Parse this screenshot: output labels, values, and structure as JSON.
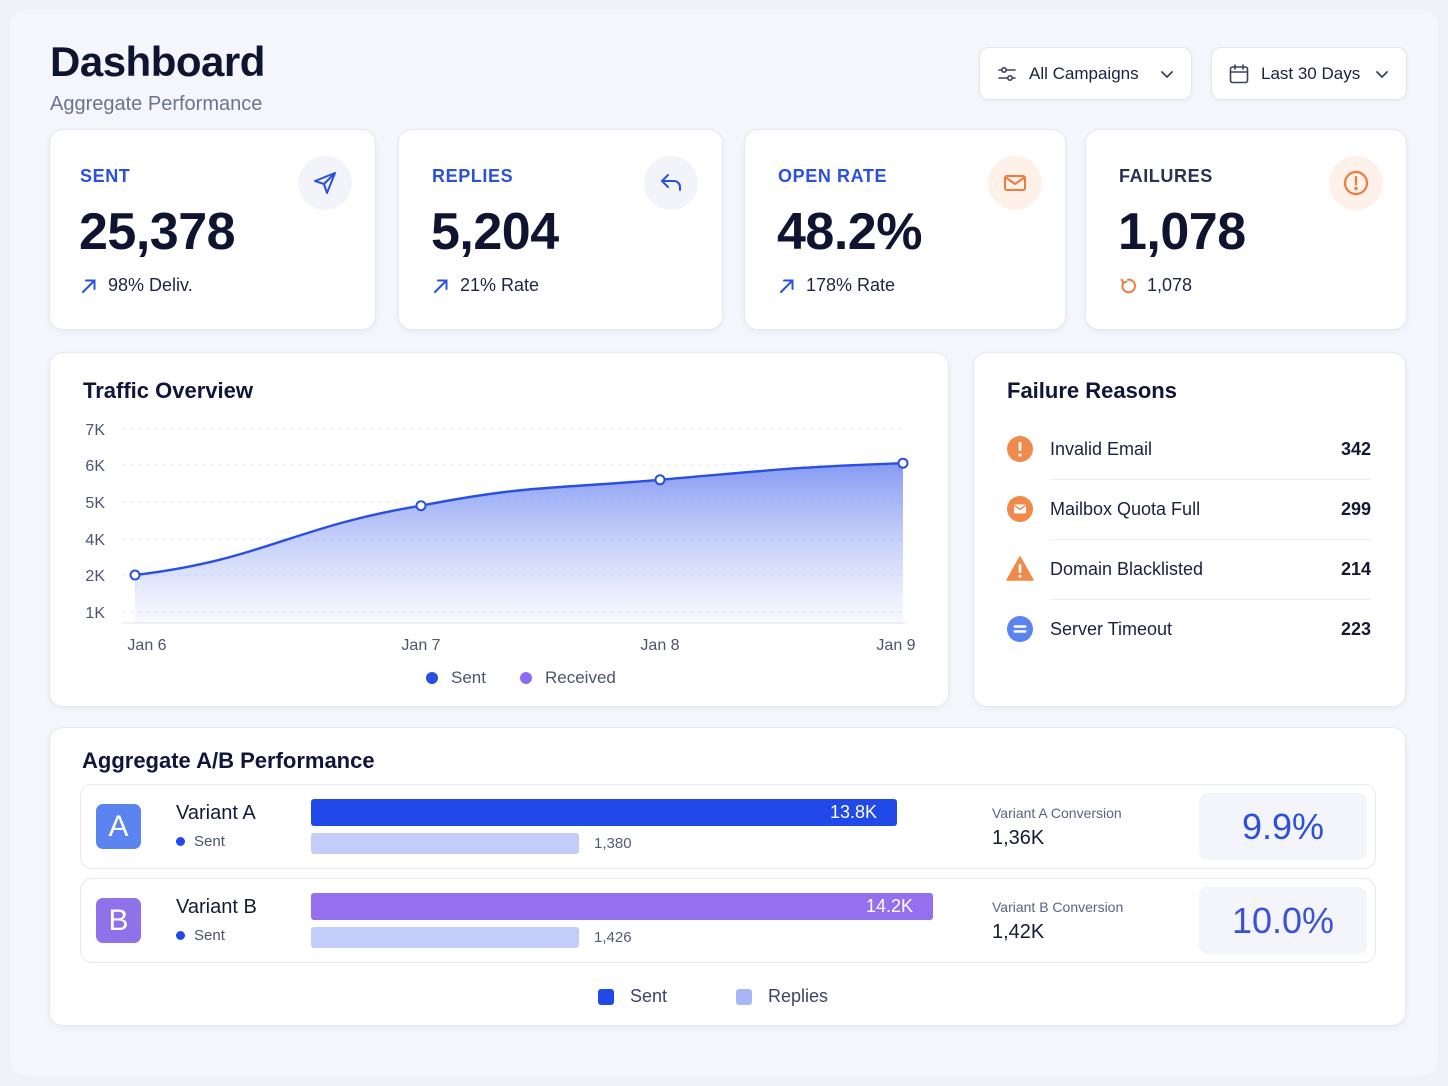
{
  "header": {
    "title": "Dashboard",
    "subtitle": "Aggregate Performance",
    "campaign_filter": "All Campaigns",
    "date_filter": "Last 30 Days"
  },
  "stats": [
    {
      "label": "SENT",
      "value": "25,378",
      "sub": "98% Deliv.",
      "icon": "send-icon",
      "accent": "#2b4fe0"
    },
    {
      "label": "REPLIES",
      "value": "5,204",
      "sub": "21% Rate",
      "icon": "reply-icon",
      "accent": "#2b4fe0"
    },
    {
      "label": "OPEN RATE",
      "value": "48.2%",
      "sub": "178% Rate",
      "icon": "mail-icon",
      "accent": "#2b4fe0"
    },
    {
      "label": "FAILURES",
      "value": "1,078",
      "sub": "1,078",
      "icon": "alert-icon",
      "accent": "#ef7a3b"
    }
  ],
  "traffic": {
    "title": "Traffic Overview",
    "legend": [
      {
        "name": "Sent",
        "color": "#2b4fe0"
      },
      {
        "name": "Received",
        "color": "#8b6cf0"
      }
    ]
  },
  "chart_data": {
    "type": "area",
    "title": "Traffic Overview",
    "x": [
      "Jan 6",
      "Jan 7",
      "Jan 8",
      "Jan 9"
    ],
    "yticks": [
      "1K",
      "2K",
      "4K",
      "5K",
      "6K",
      "7K"
    ],
    "ylim": [
      0,
      7000
    ],
    "series": [
      {
        "name": "Sent",
        "values": [
          2000,
          4900,
          5600,
          6050
        ]
      }
    ],
    "legend": [
      "Sent",
      "Received"
    ],
    "grid": true
  },
  "failures": {
    "title": "Failure Reasons",
    "items": [
      {
        "label": "Invalid Email",
        "count": "342",
        "icon": "exclamation-circle-icon",
        "color": "#f08a4b"
      },
      {
        "label": "Mailbox Quota Full",
        "count": "299",
        "icon": "mailbox-icon",
        "color": "#f08a4b"
      },
      {
        "label": "Domain Blacklisted",
        "count": "214",
        "icon": "warning-triangle-icon",
        "color": "#f08a4b"
      },
      {
        "label": "Server Timeout",
        "count": "223",
        "icon": "timeout-icon",
        "color": "#5b84f0"
      }
    ]
  },
  "ab": {
    "title": "Aggregate A/B Performance",
    "variants": [
      {
        "letter": "A",
        "name": "Variant A",
        "sent_label": "Sent",
        "bar_label": "13.8K",
        "sent": 13800,
        "replies": 1380,
        "replies_label": "1,380",
        "conv_label": "Variant A Conversion",
        "conv_value": "1,36K",
        "rate": "9.9%",
        "badge_color": "#5b84f0",
        "bar_color": "#2148e8",
        "rate_color": "#2b4fe0"
      },
      {
        "letter": "B",
        "name": "Variant B",
        "sent_label": "Sent",
        "bar_label": "14.2K",
        "sent": 14200,
        "replies": 1426,
        "replies_label": "1,426",
        "conv_label": "Variant B Conversion",
        "conv_value": "1,42K",
        "rate": "10.0%",
        "badge_color": "#8f72ea",
        "bar_color": "#9470ee",
        "rate_color": "#3b52d8"
      }
    ],
    "legend": [
      {
        "name": "Sent",
        "color": "#2148e8"
      },
      {
        "name": "Replies",
        "color": "#a8b6f5"
      }
    ]
  }
}
